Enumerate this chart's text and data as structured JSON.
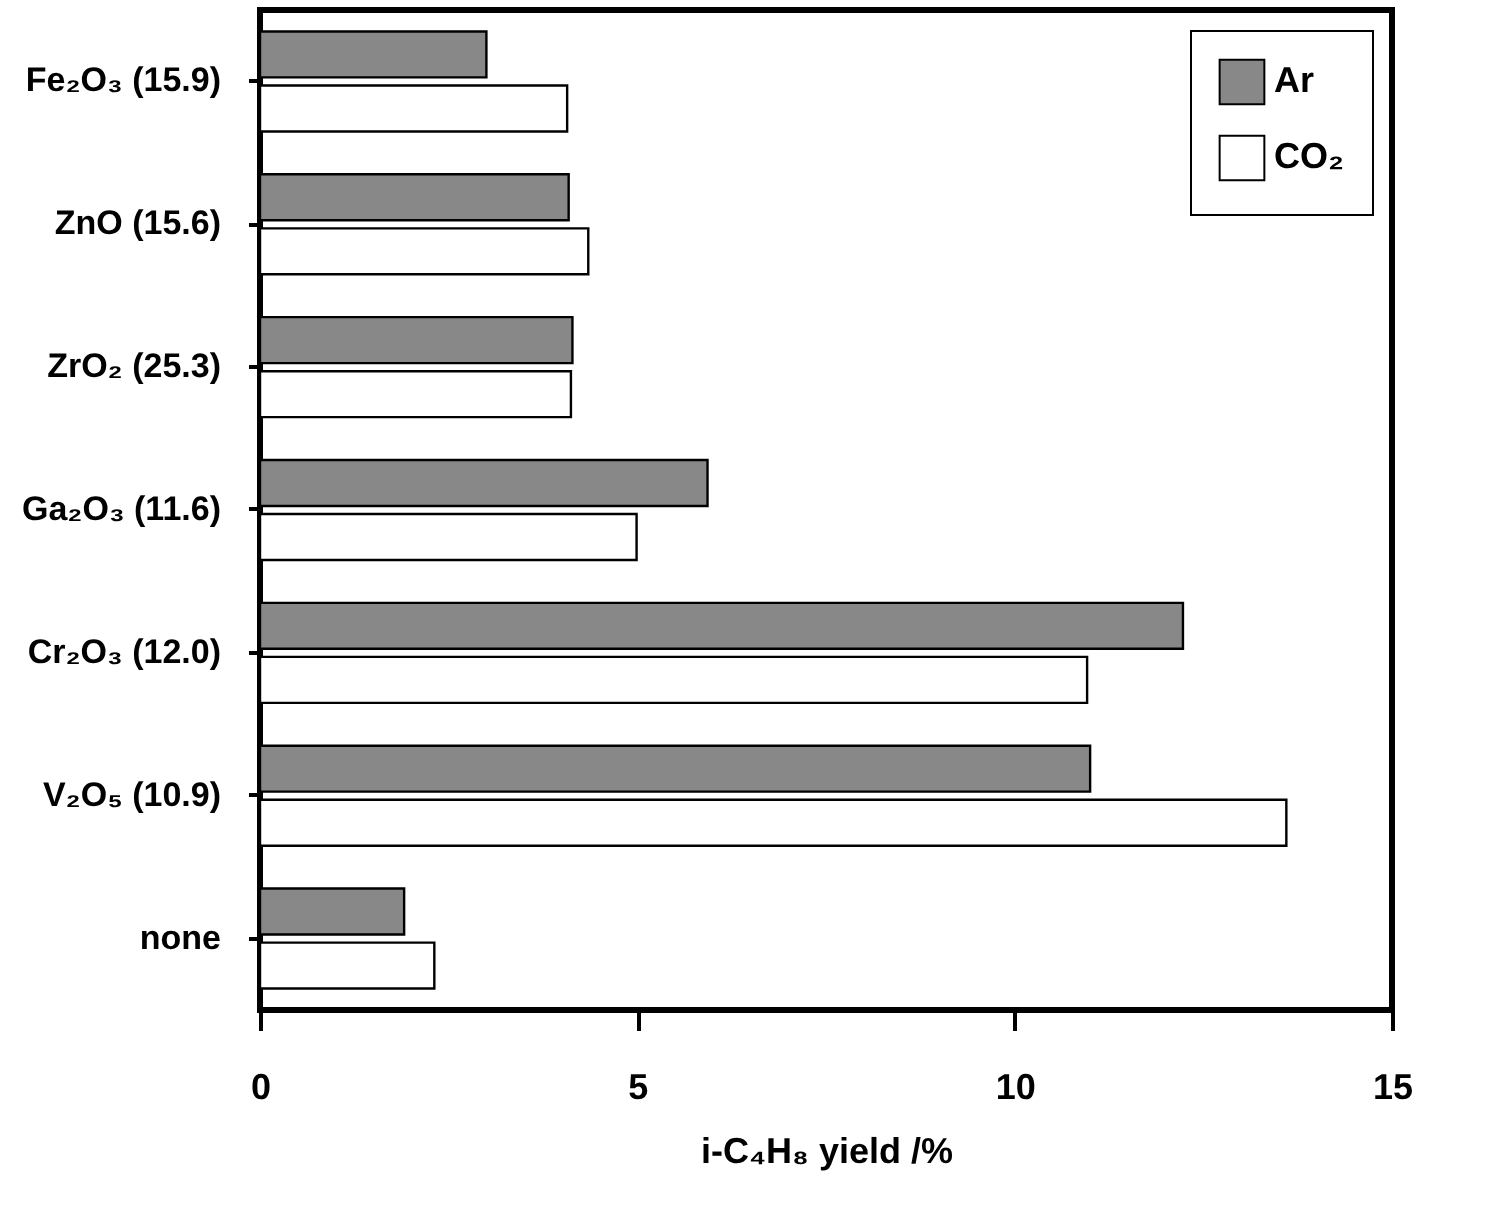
{
  "chart_data": {
    "type": "bar",
    "orientation": "horizontal",
    "categories": [
      "Fe₂O₃  (15.9)",
      "ZnO   (15.6)",
      "ZrO₂   (25.3)",
      "Ga₂O₃  (11.6)",
      "Cr₂O₃  (12.0)",
      "V₂O₅  (10.9)",
      "none"
    ],
    "series": [
      {
        "name": "Ar",
        "color": "#888888",
        "values": [
          3.0,
          4.09,
          4.14,
          5.93,
          12.23,
          11.0,
          1.91
        ]
      },
      {
        "name": "CO₂",
        "color": "#ffffff",
        "values": [
          4.07,
          4.35,
          4.12,
          4.99,
          10.96,
          13.6,
          2.31
        ]
      }
    ],
    "xlabel": "i-C₄H₈ yield /%",
    "xlim": [
      0,
      15
    ],
    "xticks": [
      0,
      5,
      10,
      15
    ],
    "grid": false,
    "legend": "top right"
  }
}
